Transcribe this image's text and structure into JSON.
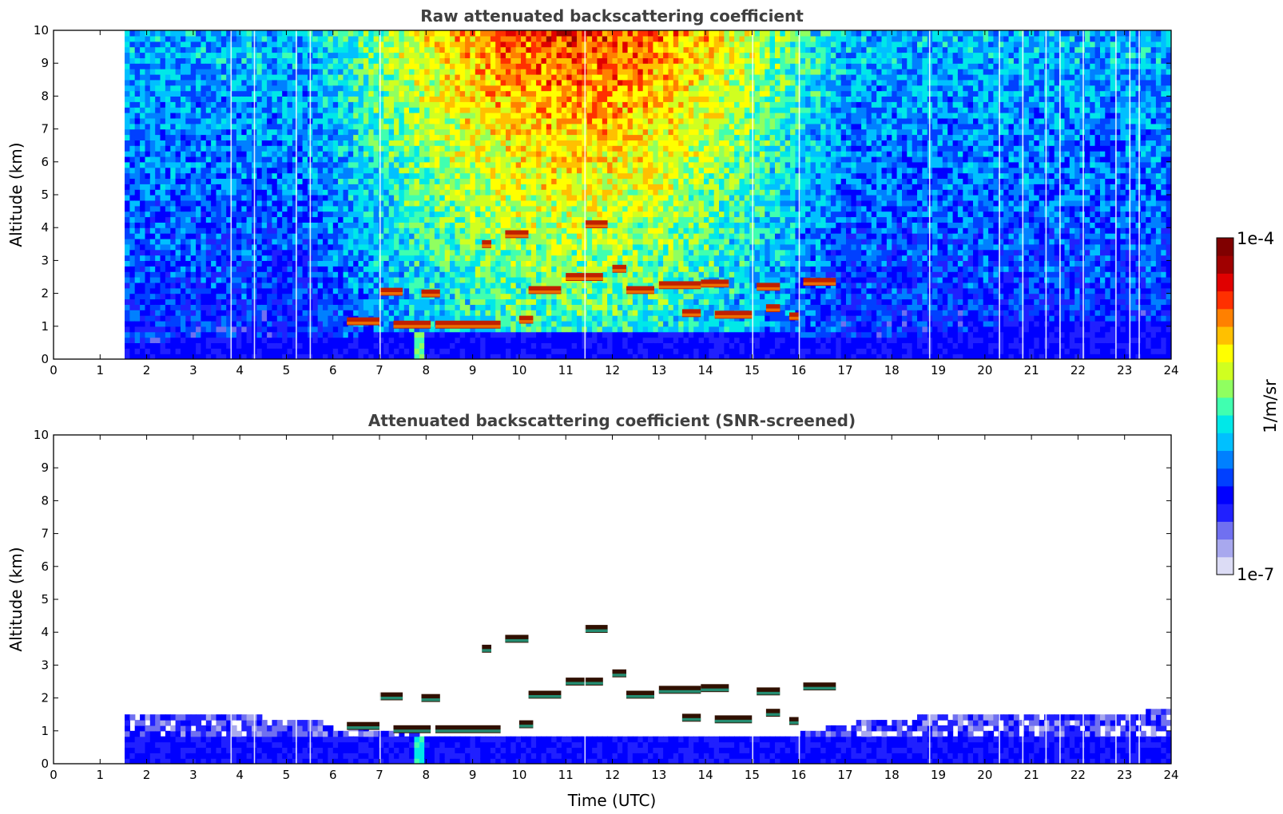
{
  "chart_data": [
    {
      "type": "heatmap",
      "title": "Raw attenuated backscattering coefficient",
      "xlabel": "",
      "ylabel": "Altitude (km)",
      "xlim": [
        0,
        24
      ],
      "ylim": [
        0,
        10
      ],
      "x_ticks": [
        0,
        1,
        2,
        3,
        4,
        5,
        6,
        7,
        8,
        9,
        10,
        11,
        12,
        13,
        14,
        15,
        16,
        17,
        18,
        19,
        20,
        21,
        22,
        23,
        24
      ],
      "y_ticks": [
        0,
        1,
        2,
        3,
        4,
        5,
        6,
        7,
        8,
        9,
        10
      ],
      "data_start_time": 1.58,
      "boundary_layer_top_km": [
        [
          1.6,
          0.55
        ],
        [
          4,
          0.65
        ],
        [
          6,
          0.7
        ],
        [
          8,
          0.85
        ],
        [
          12,
          0.9
        ],
        [
          16,
          0.75
        ],
        [
          18,
          0.6
        ],
        [
          20,
          1.0
        ],
        [
          21,
          1.25
        ],
        [
          24,
          1.25
        ]
      ],
      "cloud_layers": [
        {
          "t0": 6.3,
          "t1": 7.0,
          "alt": 1.15
        },
        {
          "t0": 7.3,
          "t1": 8.1,
          "alt": 1.05
        },
        {
          "t0": 8.2,
          "t1": 9.6,
          "alt": 1.05
        },
        {
          "t0": 7.0,
          "t1": 7.5,
          "alt": 2.05
        },
        {
          "t0": 7.9,
          "t1": 8.3,
          "alt": 2.0
        },
        {
          "t0": 9.2,
          "t1": 9.4,
          "alt": 3.5
        },
        {
          "t0": 9.7,
          "t1": 10.2,
          "alt": 3.8
        },
        {
          "t0": 10.0,
          "t1": 10.3,
          "alt": 1.2
        },
        {
          "t0": 10.2,
          "t1": 10.9,
          "alt": 2.1
        },
        {
          "t0": 11.0,
          "t1": 11.8,
          "alt": 2.5
        },
        {
          "t0": 11.4,
          "t1": 11.9,
          "alt": 4.1
        },
        {
          "t0": 12.3,
          "t1": 12.9,
          "alt": 2.1
        },
        {
          "t0": 12.0,
          "t1": 12.3,
          "alt": 2.75
        },
        {
          "t0": 13.0,
          "t1": 13.9,
          "alt": 2.25
        },
        {
          "t0": 13.9,
          "t1": 14.5,
          "alt": 2.3
        },
        {
          "t0": 13.5,
          "t1": 13.9,
          "alt": 1.4
        },
        {
          "t0": 14.2,
          "t1": 15.0,
          "alt": 1.35
        },
        {
          "t0": 15.1,
          "t1": 15.6,
          "alt": 2.2
        },
        {
          "t0": 15.3,
          "t1": 15.6,
          "alt": 1.55
        },
        {
          "t0": 15.8,
          "t1": 16.0,
          "alt": 1.3
        },
        {
          "t0": 16.1,
          "t1": 16.8,
          "alt": 2.35
        }
      ]
    },
    {
      "type": "heatmap",
      "title": "Attenuated backscattering coefficient (SNR-screened)",
      "xlabel": "Time (UTC)",
      "ylabel": "Altitude (km)",
      "xlim": [
        0,
        24
      ],
      "ylim": [
        0,
        10
      ],
      "x_ticks": [
        0,
        1,
        2,
        3,
        4,
        5,
        6,
        7,
        8,
        9,
        10,
        11,
        12,
        13,
        14,
        15,
        16,
        17,
        18,
        19,
        20,
        21,
        22,
        23,
        24
      ],
      "y_ticks": [
        0,
        1,
        2,
        3,
        4,
        5,
        6,
        7,
        8,
        9,
        10
      ],
      "data_start_time": 1.58,
      "screened_layer_top_km": [
        [
          1.6,
          1.5
        ],
        [
          5,
          1.4
        ],
        [
          6,
          1.2
        ],
        [
          8,
          0.9
        ],
        [
          12,
          0.8
        ],
        [
          16,
          0.9
        ],
        [
          17,
          1.2
        ],
        [
          18,
          1.4
        ],
        [
          24,
          1.6
        ]
      ]
    }
  ],
  "colorbar": {
    "label": "1/m/sr",
    "max_label": "1e-4",
    "min_label": "1e-7",
    "colors": [
      "#dcdcf5",
      "#a8a8ee",
      "#7070f0",
      "#2020ff",
      "#0000ff",
      "#0040ff",
      "#0080ff",
      "#00c0ff",
      "#00e8e8",
      "#40ffb0",
      "#90ff60",
      "#d0ff20",
      "#ffff00",
      "#ffc000",
      "#ff8000",
      "#ff3000",
      "#e00000",
      "#a00000",
      "#800000"
    ]
  }
}
